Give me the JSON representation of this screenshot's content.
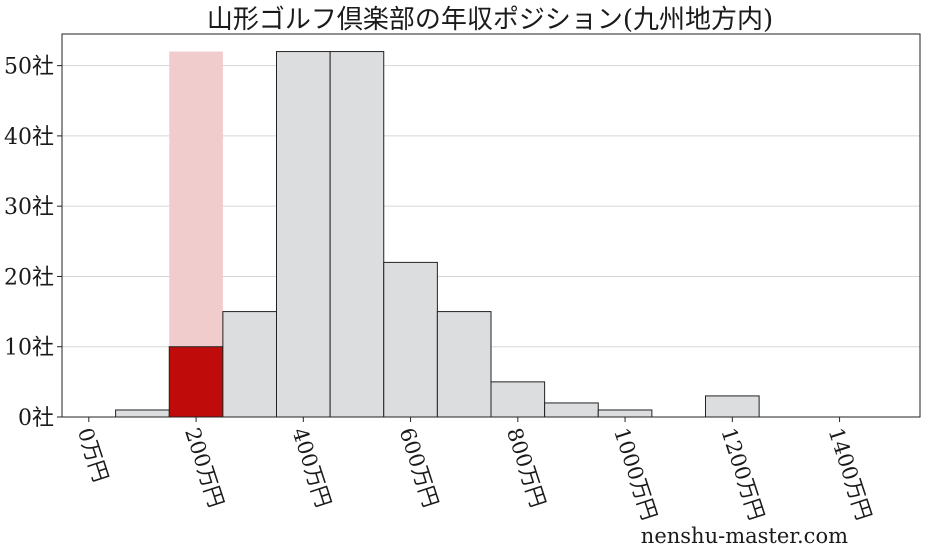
{
  "title": "山形ゴルフ倶楽部の年収ポジション(九州地方内)",
  "credit": "nenshu-master.com",
  "colors": {
    "bar": "#dcdddf",
    "highlight": "#c00b0b",
    "highlight_bg": "#f0cccc",
    "edge": "#222222"
  },
  "chart_data": {
    "type": "bar",
    "title": "山形ゴルフ倶楽部の年収ポジション(九州地方内)",
    "xlabel": "",
    "ylabel": "",
    "x_unit": "万円",
    "y_unit": "社",
    "xlim": [
      -50,
      1550
    ],
    "ylim": [
      0,
      54.5
    ],
    "bin_width": 100,
    "bins": [
      {
        "start": 50,
        "end": 150,
        "value": 1
      },
      {
        "start": 150,
        "end": 250,
        "value": 10,
        "highlight": true
      },
      {
        "start": 250,
        "end": 350,
        "value": 15
      },
      {
        "start": 350,
        "end": 450,
        "value": 52
      },
      {
        "start": 450,
        "end": 550,
        "value": 52
      },
      {
        "start": 550,
        "end": 650,
        "value": 22
      },
      {
        "start": 650,
        "end": 750,
        "value": 15
      },
      {
        "start": 750,
        "end": 850,
        "value": 5
      },
      {
        "start": 850,
        "end": 950,
        "value": 2
      },
      {
        "start": 950,
        "end": 1050,
        "value": 1
      },
      {
        "start": 1150,
        "end": 1250,
        "value": 3
      }
    ],
    "highlight_band": {
      "start": 150,
      "end": 250,
      "top": 52
    },
    "xticks": [
      {
        "value": 0,
        "label": "0万円"
      },
      {
        "value": 200,
        "label": "200万円"
      },
      {
        "value": 400,
        "label": "400万円"
      },
      {
        "value": 600,
        "label": "600万円"
      },
      {
        "value": 800,
        "label": "800万円"
      },
      {
        "value": 1000,
        "label": "1000万円"
      },
      {
        "value": 1200,
        "label": "1200万円"
      },
      {
        "value": 1400,
        "label": "1400万円"
      }
    ],
    "yticks": [
      {
        "value": 0,
        "label": "0社"
      },
      {
        "value": 10,
        "label": "10社"
      },
      {
        "value": 20,
        "label": "20社"
      },
      {
        "value": 30,
        "label": "30社"
      },
      {
        "value": 40,
        "label": "40社"
      },
      {
        "value": 50,
        "label": "50社"
      }
    ],
    "grid": "horizontal",
    "legend": "none"
  }
}
